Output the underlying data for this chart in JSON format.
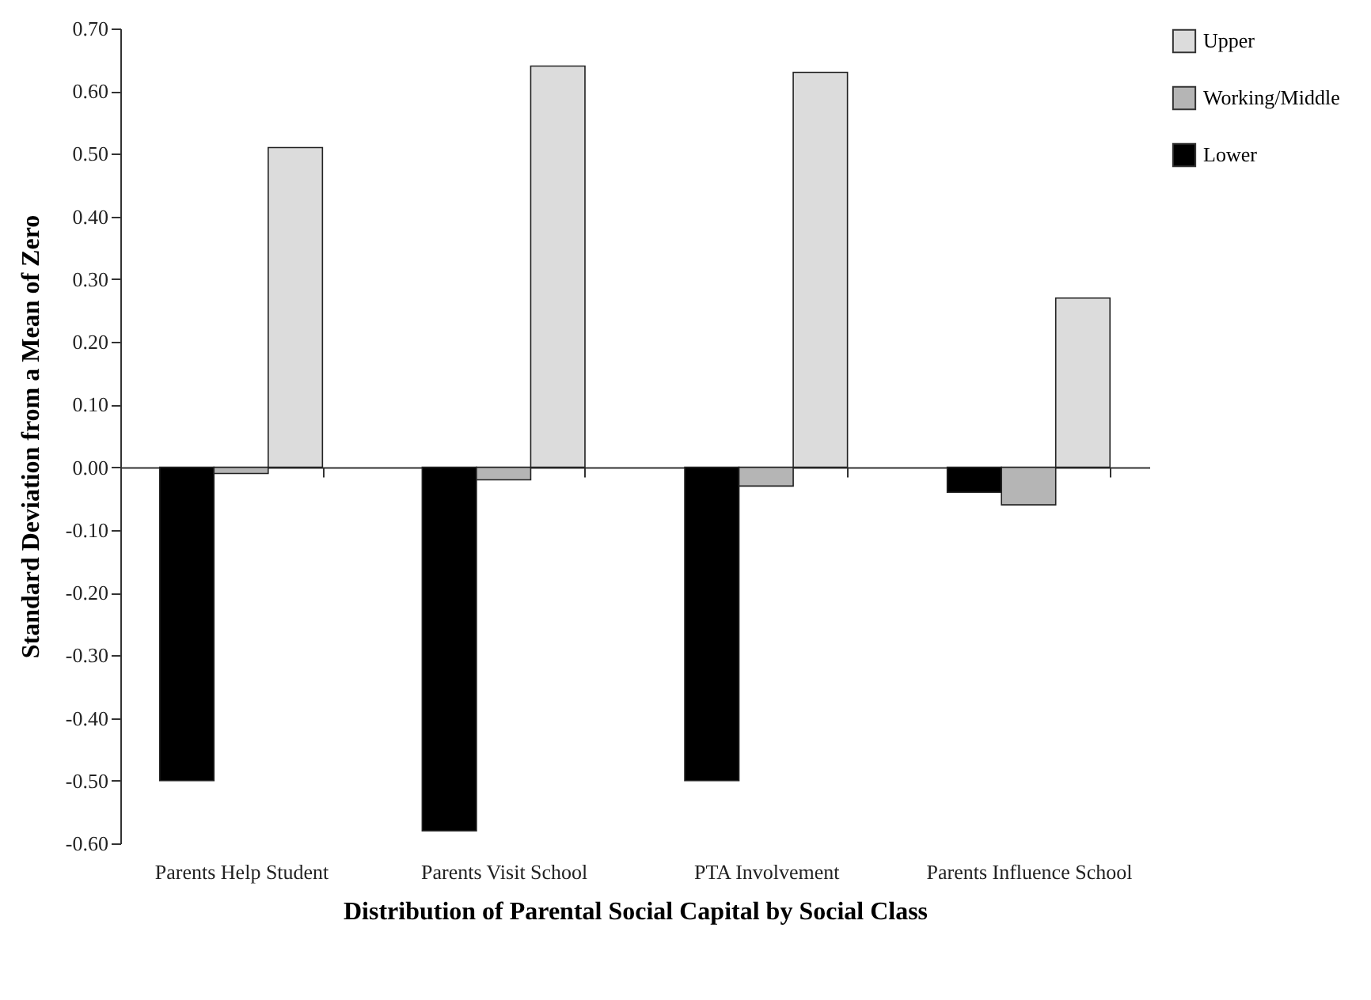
{
  "chart_data": {
    "type": "bar",
    "xlabel": "Distribution of Parental Social Capital by Social Class",
    "ylabel": "Standard Deviation from a Mean of Zero",
    "categories": [
      "Parents Help Student",
      "Parents Visit School",
      "PTA Involvement",
      "Parents Influence School"
    ],
    "series": [
      {
        "name": "Lower",
        "color": "#000000",
        "values": [
          -0.5,
          -0.58,
          -0.5,
          -0.04
        ]
      },
      {
        "name": "Working/Middle",
        "color": "#b5b5b5",
        "values": [
          -0.01,
          -0.02,
          -0.03,
          -0.06
        ]
      },
      {
        "name": "Upper",
        "color": "#dcdcdc",
        "values": [
          0.51,
          0.64,
          0.63,
          0.27
        ]
      }
    ],
    "ylim": [
      -0.6,
      0.7
    ],
    "yticks": [
      {
        "value": -0.6,
        "label": "-0.60"
      },
      {
        "value": -0.5,
        "label": "-0.50"
      },
      {
        "value": -0.4,
        "label": "-0.40"
      },
      {
        "value": -0.3,
        "label": "-0.30"
      },
      {
        "value": -0.2,
        "label": "-0.20"
      },
      {
        "value": -0.1,
        "label": "-0.10"
      },
      {
        "value": 0,
        "label": "0.00"
      },
      {
        "value": 0.1,
        "label": "0.10"
      },
      {
        "value": 0.2,
        "label": "0.20"
      },
      {
        "value": 0.3,
        "label": "0.30"
      },
      {
        "value": 0.4,
        "label": "0.40"
      },
      {
        "value": 0.5,
        "label": "0.50"
      },
      {
        "value": 0.6,
        "label": "0.60"
      },
      {
        "value": 0.7,
        "label": "0.70"
      }
    ],
    "legend": "right"
  }
}
